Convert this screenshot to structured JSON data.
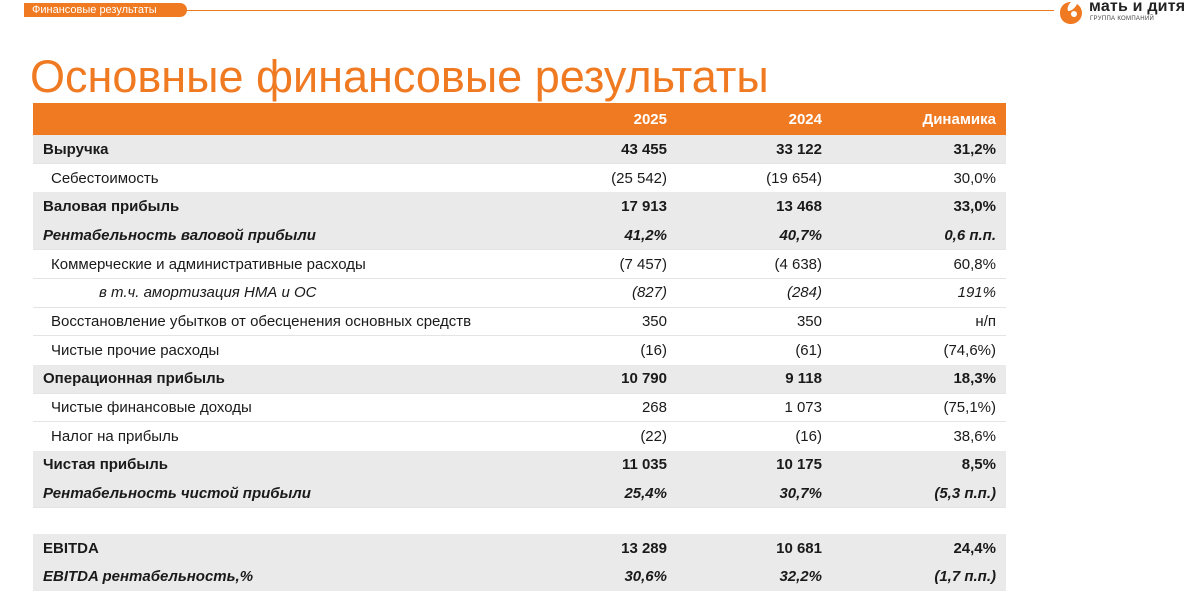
{
  "header": {
    "section_tag": "Финансовые результаты",
    "title": "Основные финансовые результаты"
  },
  "logo": {
    "name": "мать и дитя",
    "subtitle": "ГРУППА КОМПАНИЙ",
    "colors": {
      "mark": "#f07a22",
      "text": "#222222"
    }
  },
  "colors": {
    "accent": "#f07a22",
    "row_highlight": "#eaeaea"
  },
  "table": {
    "columns": [
      "",
      "2025",
      "2024",
      "Динамика"
    ],
    "rows": [
      {
        "label": "Выручка",
        "style": "bold",
        "v2025": "43 455",
        "v2024": "33 122",
        "change": "31,2%"
      },
      {
        "label": "Себестоимость",
        "style": "reg",
        "v2025": "(25 542)",
        "v2024": "(19 654)",
        "change": "30,0%"
      },
      {
        "label": "Валовая прибыль",
        "style": "bold",
        "v2025": "17 913",
        "v2024": "13 468",
        "change": "33,0%"
      },
      {
        "label": "Рентабельность валовой прибыли",
        "style": "ital",
        "v2025": "41,2%",
        "v2024": "40,7%",
        "change": "0,6 п.п."
      },
      {
        "label": "Коммерческие и административные расходы",
        "style": "reg",
        "v2025": "(7 457)",
        "v2024": "(4 638)",
        "change": "60,8%"
      },
      {
        "label": "в т.ч. амортизация НМА и ОС",
        "style": "sub",
        "v2025": "(827)",
        "v2024": "(284)",
        "change": "191%"
      },
      {
        "label": "Восстановление убытков от обесценения основных средств",
        "style": "reg",
        "v2025": "350",
        "v2024": "350",
        "change": "н/п"
      },
      {
        "label": "Чистые прочие расходы",
        "style": "reg",
        "v2025": "(16)",
        "v2024": "(61)",
        "change": "(74,6%)"
      },
      {
        "label": "Операционная прибыль",
        "style": "bold",
        "v2025": "10 790",
        "v2024": "9 118",
        "change": "18,3%"
      },
      {
        "label": "Чистые финансовые доходы",
        "style": "reg",
        "v2025": "268",
        "v2024": "1 073",
        "change": "(75,1%)"
      },
      {
        "label": "Налог на прибыль",
        "style": "reg",
        "v2025": "(22)",
        "v2024": "(16)",
        "change": "38,6%"
      },
      {
        "label": "Чистая прибыль",
        "style": "bold",
        "v2025": "11 035",
        "v2024": "10 175",
        "change": "8,5%"
      },
      {
        "label": "Рентабельность чистой прибыли",
        "style": "ital",
        "v2025": "25,4%",
        "v2024": "30,7%",
        "change": "(5,3 п.п.)"
      },
      {
        "label": "",
        "style": "spacer",
        "v2025": "",
        "v2024": "",
        "change": ""
      },
      {
        "label": "EBITDA",
        "style": "bold",
        "v2025": "13 289",
        "v2024": "10 681",
        "change": "24,4%"
      },
      {
        "label": "EBITDA рентабельность,%",
        "style": "ital",
        "v2025": "30,6%",
        "v2024": "32,2%",
        "change": "(1,7 п.п.)"
      }
    ]
  }
}
